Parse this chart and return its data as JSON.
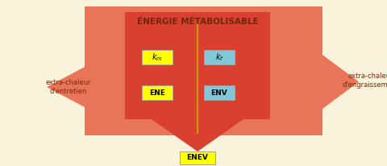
{
  "bg_color": "#faf3dc",
  "light_red": "#e8755a",
  "dark_red": "#d94030",
  "yellow": "#ffff00",
  "blue_box": "#80c8d8",
  "title": "ÉNERGIE MÉTABOLISABLE",
  "label_ENE": "ENE",
  "label_ENV": "ENV",
  "label_ENEV": "ENEV",
  "label_left": "extra-chaleur\nd'entretien",
  "label_right": "extra-chaleur\nd'engraissement",
  "divider_color": "#c8a000",
  "text_color": "#7a2808",
  "title_color": "#6b2808"
}
